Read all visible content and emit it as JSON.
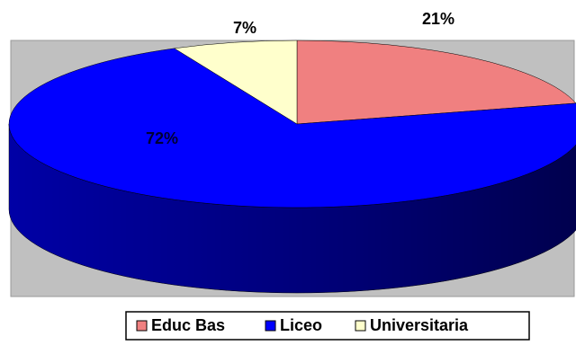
{
  "chart_data": {
    "type": "pie3d",
    "categories": [
      "Educ Bas",
      "Liceo",
      "Universitaria"
    ],
    "values": [
      21,
      72,
      7
    ],
    "value_labels": [
      "21%",
      "72%",
      "7%"
    ],
    "colors": [
      "#f08080",
      "#0000ff",
      "#ffffcc"
    ],
    "legend": "bottom"
  }
}
